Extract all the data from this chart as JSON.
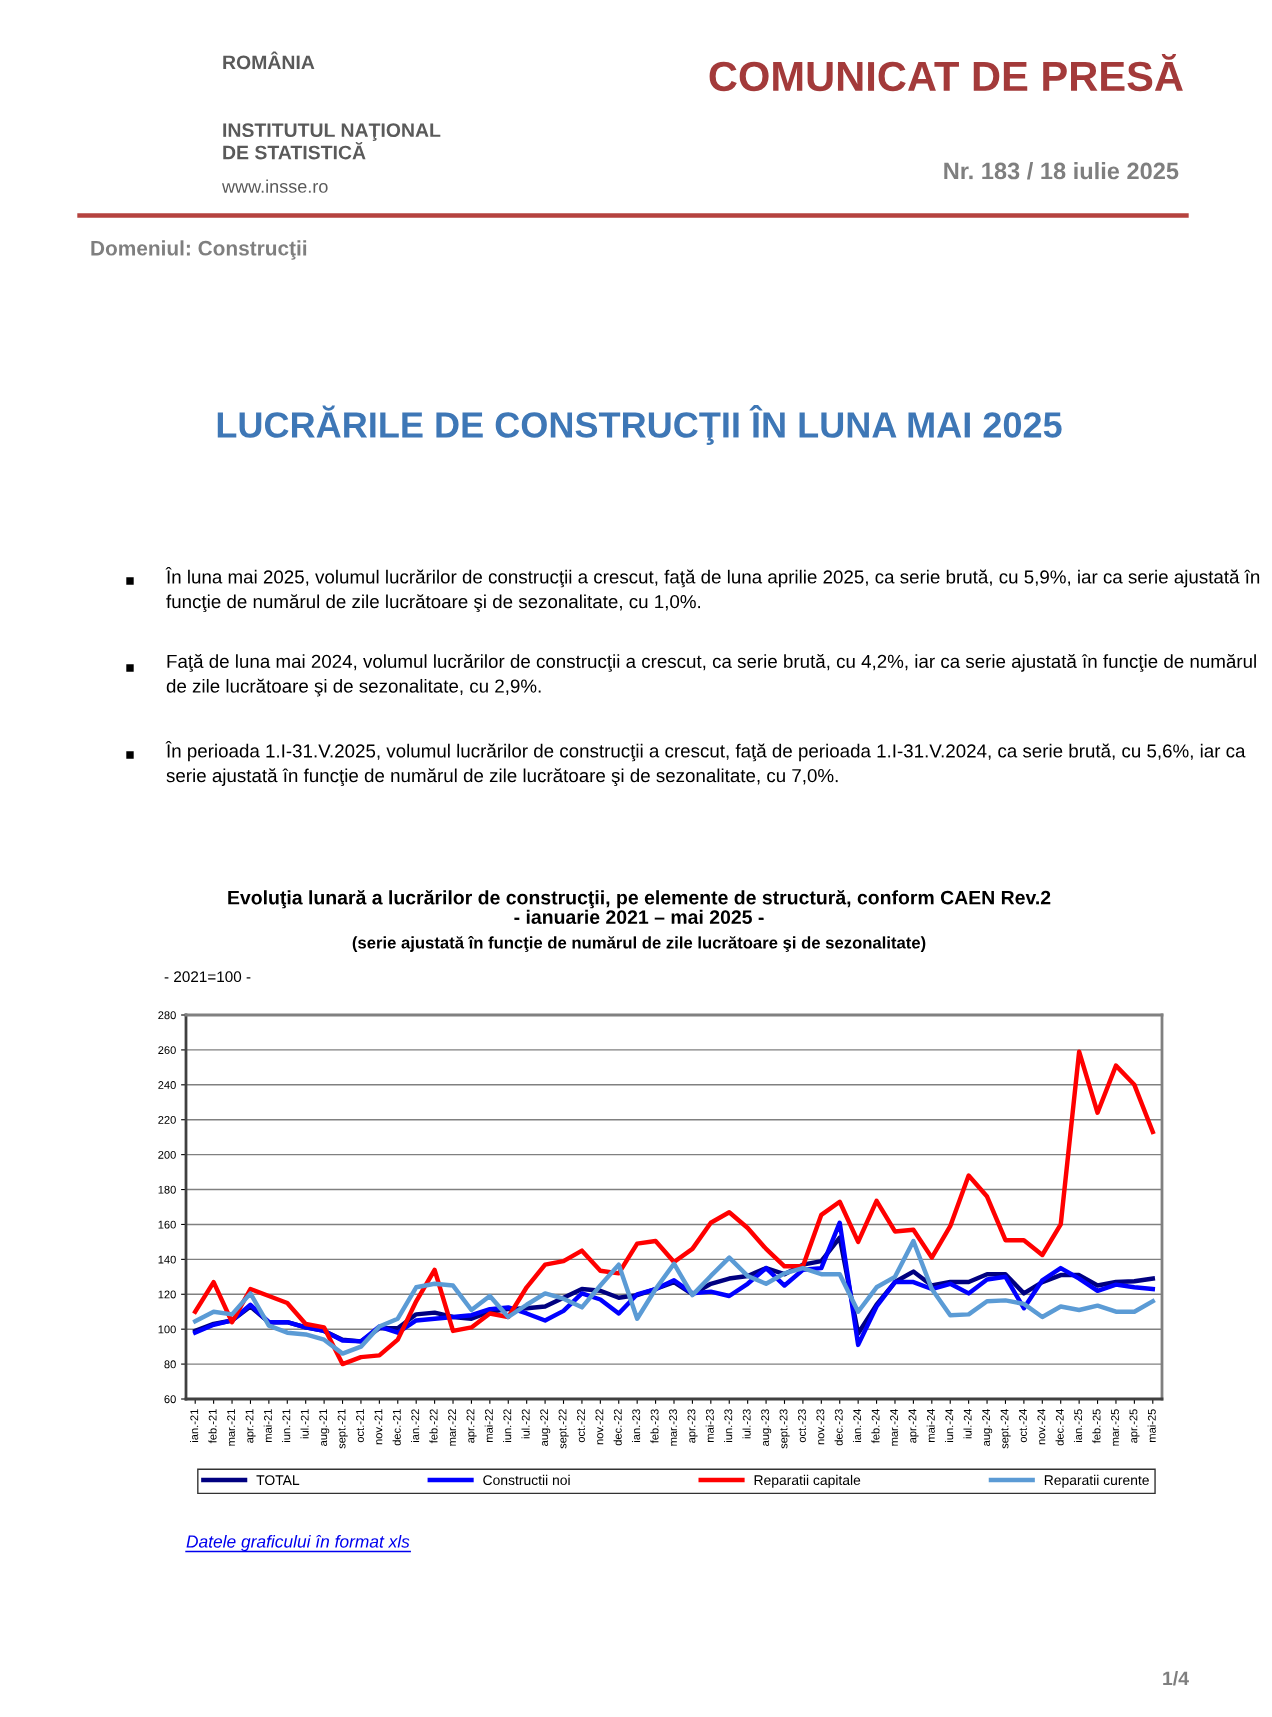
{
  "chart_data": {
    "type": "line",
    "title": "Evoluţia lunară a lucrărilor de construcţii, pe elemente de structură, conform CAEN Rev.2\n- ianuarie 2021 – mai 2025 -",
    "subtitle": "(serie ajustată în funcţie de numărul de zile lucrătoare şi de sezonalitate)",
    "categories": [
      "ian.-21",
      "feb.-21",
      "mar.-21",
      "apr.-21",
      "mai-21",
      "iun.-21",
      "iul.-21",
      "aug.-21",
      "sept.-21",
      "oct.-21",
      "nov.-21",
      "dec.-21",
      "ian.-22",
      "feb.-22",
      "mar.-22",
      "apr.-22",
      "mai-22",
      "iun.-22",
      "iul.-22",
      "aug.-22",
      "sept.-22",
      "oct.-22",
      "nov.-22",
      "dec.-22",
      "ian.-23",
      "feb.-23",
      "mar.-23",
      "apr.-23",
      "mai-23",
      "iun.-23",
      "iul.-23",
      "aug.-23",
      "sept.-23",
      "oct.-23",
      "nov.-23",
      "dec.-23",
      "ian.-24",
      "feb.-24",
      "mar.-24",
      "apr.-24",
      "mai-24",
      "iun.-24",
      "iul.-24",
      "aug.-24",
      "sept.-24",
      "oct.-24",
      "nov.-24",
      "dec.-24",
      "ian.-25",
      "feb.-25",
      "mar.-25",
      "apr.-25",
      "mai-25"
    ],
    "series": [
      {
        "name": "TOTAL",
        "color": "#000080",
        "values": [
          99,
          103,
          105,
          113,
          104,
          104,
          101,
          99,
          94,
          93,
          100.5,
          100.5,
          108.5,
          109.5,
          107,
          106,
          110,
          111.5,
          112,
          113,
          118,
          123,
          122,
          118,
          119.5,
          123,
          127,
          120,
          126,
          129,
          130.5,
          135,
          131.5,
          137,
          139,
          152.5,
          97.5,
          114,
          127,
          133,
          125,
          127,
          127,
          131.5,
          131.5,
          120.5,
          127,
          131,
          131,
          125,
          127,
          127.5,
          129
        ]
      },
      {
        "name": "Constructii noi",
        "color": "#0000ff",
        "values": [
          98,
          102.5,
          105,
          114,
          104,
          104,
          101,
          99,
          93.5,
          93,
          101.5,
          98,
          105,
          106,
          107,
          108,
          111.5,
          112.5,
          109,
          105,
          110.5,
          120.5,
          117,
          109,
          120,
          123,
          128,
          120.5,
          121.5,
          119,
          126,
          135,
          125,
          134,
          135,
          161,
          91,
          113,
          127,
          127,
          123,
          126,
          120.5,
          128.5,
          130,
          112,
          128,
          135,
          129,
          122,
          125.5,
          124,
          123
        ]
      },
      {
        "name": "Reparatii capitale",
        "color": "#ff0000",
        "values": [
          110,
          127,
          104,
          123,
          119,
          115,
          103,
          101,
          80,
          84,
          85,
          94,
          116,
          134,
          99,
          101,
          109,
          107,
          124,
          137,
          139,
          145,
          133.5,
          132,
          149,
          150.5,
          138.5,
          146,
          161,
          167,
          158,
          146,
          136,
          136,
          165.5,
          173,
          150,
          173.5,
          156,
          157,
          141,
          159,
          188,
          176,
          151,
          151,
          142.5,
          160,
          259,
          224,
          251,
          240,
          213
        ]
      },
      {
        "name": "Reparatii curente",
        "color": "#5b9bd5",
        "values": [
          104.5,
          110,
          108.5,
          120.5,
          102,
          98,
          97,
          94,
          86,
          90,
          101.5,
          106,
          124,
          126,
          125,
          111,
          119,
          107,
          114,
          120.5,
          117.5,
          112.5,
          125,
          137,
          106,
          123,
          137.5,
          119.5,
          130.5,
          141,
          130.5,
          126,
          132,
          135,
          131.5,
          131.5,
          110,
          124,
          130,
          150.5,
          123,
          108,
          108.5,
          116,
          116.5,
          114.5,
          107,
          113,
          111,
          113.5,
          110,
          110,
          116
        ]
      }
    ],
    "ylim": [
      60,
      280
    ],
    "yticks": [
      60,
      80,
      100,
      120,
      140,
      160,
      180,
      200,
      220,
      240,
      260,
      280
    ],
    "grid": "y",
    "legend": "bottom",
    "marker": "none",
    "line_style": "solid",
    "annotations": [
      "ROMÂNIA",
      "INSTITUTUL NAŢIONAL\nDE STATISTICĂ",
      "www.insse.ro",
      "COMUNICAT DE PRESĂ",
      "Nr. 183 / 18 iulie 2025",
      "Domeniul: Construcţii",
      "LUCRĂRILE DE CONSTRUCŢII ÎN LUNA MAI 2025",
      "În luna mai 2025, volumul lucrărilor de construcţii a crescut, faţă de luna aprilie 2025, ca serie brută, cu 5,9%, iar ca serie ajustată în funcţie de numărul de zile lucrătoare şi de sezonalitate, cu 1,0%.",
      "Faţă de luna mai 2024, volumul lucrărilor de construcţii a crescut, ca serie brută, cu 4,2%, iar ca serie ajustată în funcţie de numărul de zile lucrătoare şi de sezonalitate, cu 2,9%.",
      "În perioada 1.I-31.V.2025, volumul lucrărilor de construcţii a crescut, faţă de perioada 1.I-31.V.2024, ca serie brută, cu 5,6%, iar ca serie ajustată în funcţie de numărul de zile lucrătoare şi de sezonalitate, cu 7,0%.",
      "- 2021=100 -",
      "Datele graficului în format xls",
      "1/4"
    ]
  }
}
